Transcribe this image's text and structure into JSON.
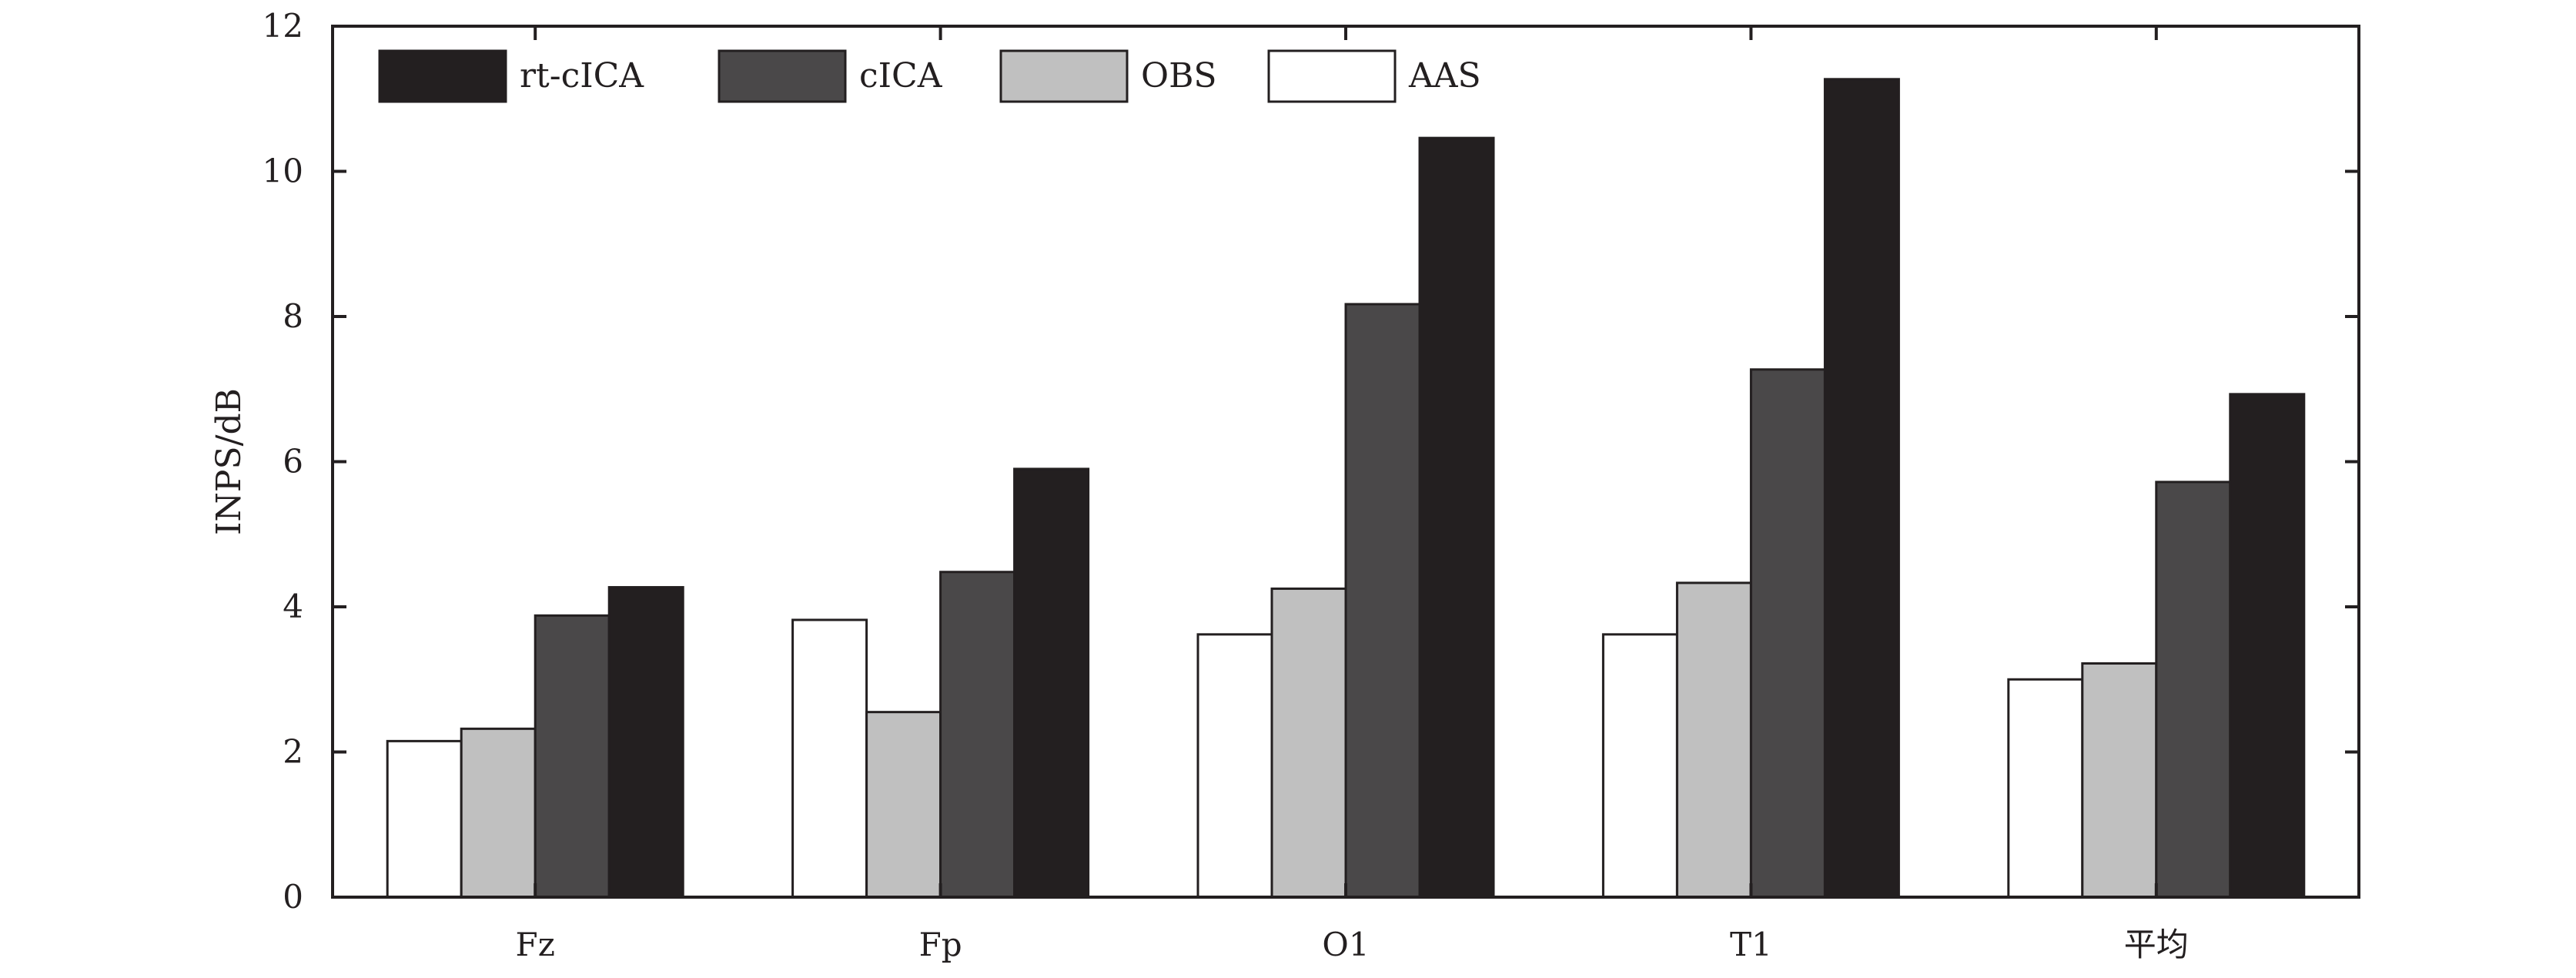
{
  "chart_data": {
    "type": "bar",
    "categories": [
      "Fz",
      "Fp",
      "O1",
      "T1",
      "平均"
    ],
    "series": [
      {
        "name": "AAS",
        "color": "#ffffff",
        "values": [
          2.15,
          3.82,
          3.62,
          3.62,
          3.0
        ]
      },
      {
        "name": "OBS",
        "color": "#c0c0c0",
        "values": [
          2.32,
          2.55,
          4.25,
          4.33,
          3.22
        ]
      },
      {
        "name": "cICA",
        "color": "#4a4849",
        "values": [
          3.88,
          4.48,
          8.17,
          7.27,
          5.72
        ]
      },
      {
        "name": "rt-cICA",
        "color": "#231f20",
        "values": [
          4.27,
          5.9,
          10.46,
          11.27,
          6.93
        ]
      }
    ],
    "legend_order": [
      "rt-cICA",
      "cICA",
      "OBS",
      "AAS"
    ],
    "legend_position": "top-left",
    "ylabel": "INPS/dB",
    "ylim": [
      0,
      12
    ],
    "yticks": [
      0,
      2,
      4,
      6,
      8,
      10,
      12
    ],
    "grid": false
  }
}
